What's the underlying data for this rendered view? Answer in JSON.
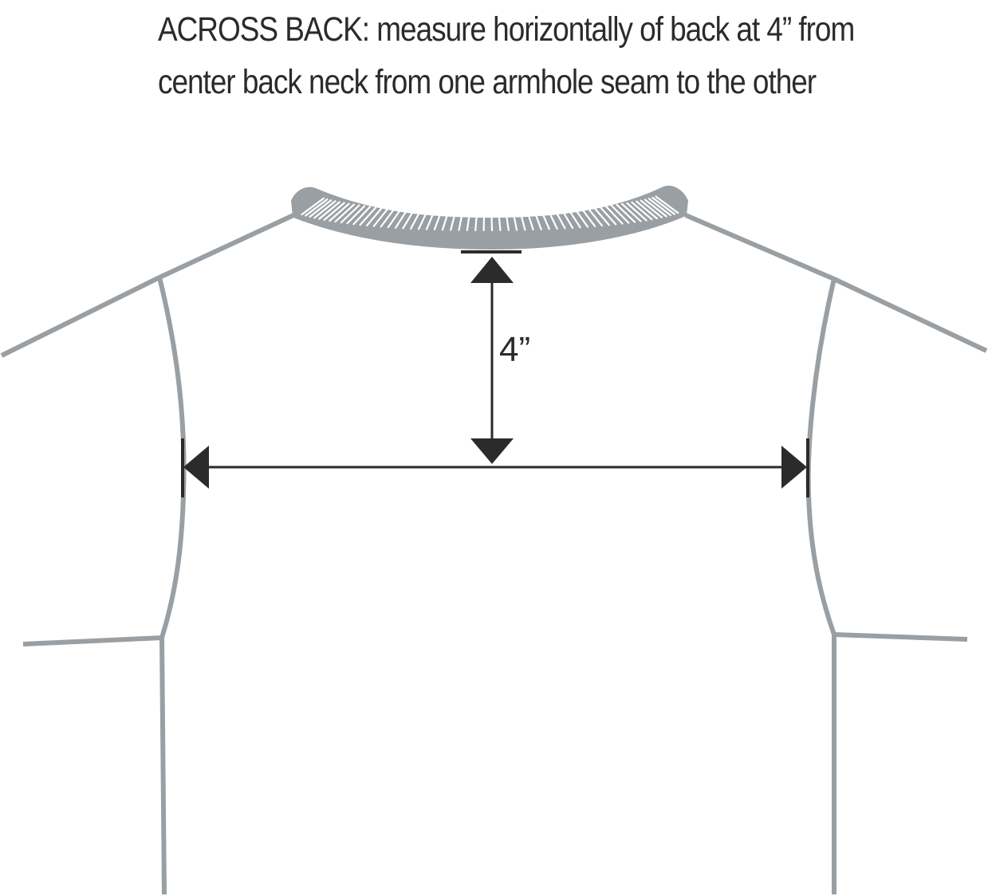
{
  "instruction": {
    "line1": "ACROSS BACK:  measure horizontally of back at 4” from",
    "line2": "center back neck  from one armhole seam to the other"
  },
  "measurement": {
    "label": "4”"
  },
  "colors": {
    "garment_outline": "#9a9fa3",
    "neck_rib": "#9a9fa3",
    "measure_lines": "#2b2b2b",
    "text": "#2b2b2b"
  }
}
